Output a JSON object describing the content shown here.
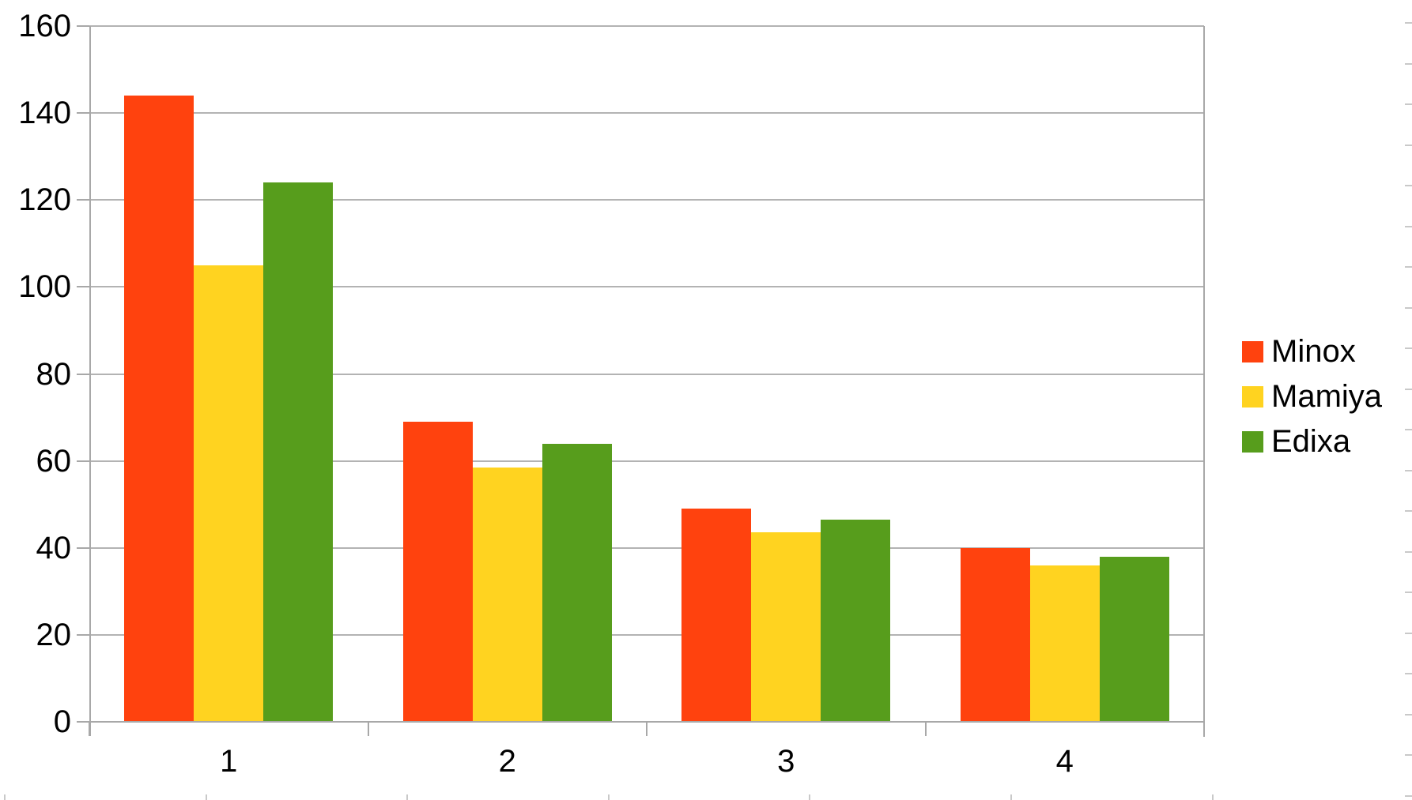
{
  "chart_data": {
    "type": "bar",
    "title": "",
    "xlabel": "",
    "ylabel": "",
    "categories": [
      "1",
      "2",
      "3",
      "4"
    ],
    "series": [
      {
        "name": "Minox",
        "color": "#FF420E",
        "values": [
          144,
          69,
          49,
          40
        ]
      },
      {
        "name": "Mamiya",
        "color": "#FFD320",
        "values": [
          105,
          58.5,
          43.5,
          36
        ]
      },
      {
        "name": "Edixa",
        "color": "#579D1C",
        "values": [
          124,
          64,
          46.5,
          38
        ]
      }
    ],
    "ylim": [
      0,
      160
    ],
    "ytick_step": 20,
    "ytick_labels": [
      "0",
      "20",
      "40",
      "60",
      "80",
      "100",
      "120",
      "140",
      "160"
    ],
    "grid": true,
    "legend_position": "right"
  },
  "colors": {
    "background": "#ffffff",
    "gridline": "#b3b3b3",
    "axis": "#a8a8a8",
    "text": "#000000",
    "edge_marks": "#c9c9c9"
  }
}
